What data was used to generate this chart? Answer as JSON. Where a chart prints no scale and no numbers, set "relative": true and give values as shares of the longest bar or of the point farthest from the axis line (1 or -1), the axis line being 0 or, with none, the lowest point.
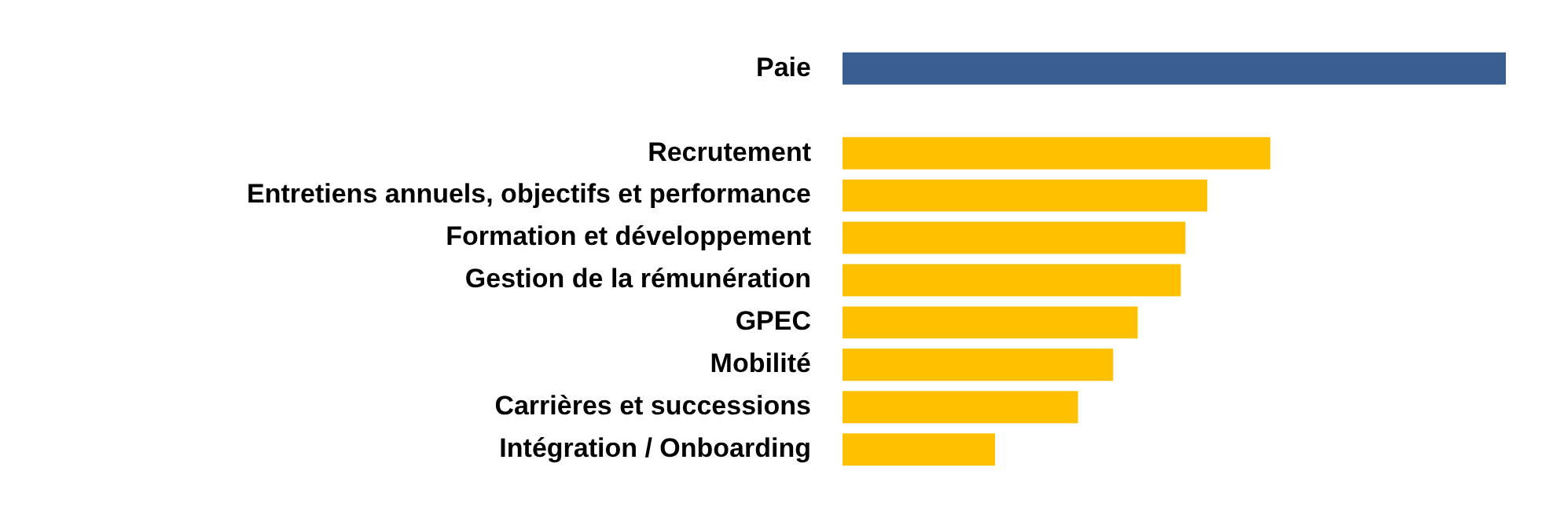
{
  "chart_data": {
    "type": "bar",
    "orientation": "horizontal",
    "relative": true,
    "categories": [
      "Paie",
      null,
      "Recrutement",
      "Entretiens annuels, objectifs et performance",
      "Formation et développement",
      "Gestion de la rémunération",
      "GPEC",
      "Mobilité",
      "Carrières et successions",
      "Intégration / Onboarding"
    ],
    "values": [
      1,
      null,
      0.645,
      0.55,
      0.517,
      0.51,
      0.445,
      0.408,
      0.355,
      0.23
    ],
    "colors": [
      "#3b5e91",
      null,
      "#ffc000",
      "#ffc000",
      "#ffc000",
      "#ffc000",
      "#ffc000",
      "#ffc000",
      "#ffc000",
      "#ffc000"
    ],
    "legend": false
  }
}
